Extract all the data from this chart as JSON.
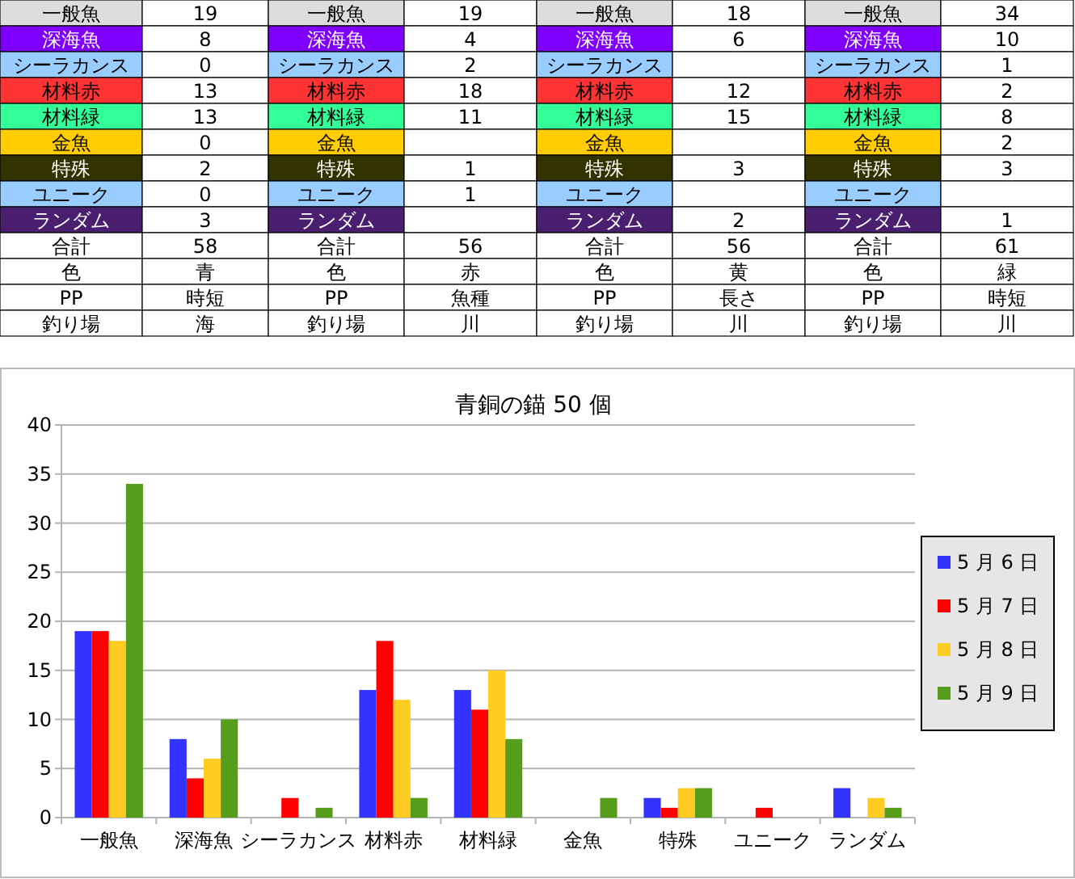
{
  "chart_data": [
    {
      "type": "other",
      "annotations": [
        "一般魚",
        "19",
        "一般魚",
        "19",
        "一般魚",
        "18",
        "一般魚",
        "34",
        "深海魚",
        "8",
        "深海魚",
        "4",
        "深海魚",
        "6",
        "深海魚",
        "10",
        "シーラカンス",
        "0",
        "シーラカンス",
        "2",
        "シーラカンス",
        null,
        "シーラカンス",
        "1",
        "材料赤",
        "13",
        "材料赤",
        "18",
        "材料赤",
        "12",
        "材料赤",
        "2",
        "材料緑",
        "13",
        "材料緑",
        "11",
        "材料緑",
        "15",
        "材料緑",
        "8",
        "金魚",
        "0",
        "金魚",
        null,
        "金魚",
        null,
        "金魚",
        "2",
        "特殊",
        "2",
        "特殊",
        "1",
        "特殊",
        "3",
        "特殊",
        "3",
        "ユニーク",
        "0",
        "ユニーク",
        "1",
        "ユニーク",
        null,
        "ユニーク",
        null,
        "ランダム",
        "3",
        "ランダム",
        null,
        "ランダム",
        "2",
        "ランダム",
        "1",
        "合計",
        "58",
        "合計",
        "56",
        "合計",
        "56",
        "合計",
        "61",
        "色",
        "青",
        "色",
        "赤",
        "色",
        "黄",
        "色",
        "緑",
        "PP",
        "時短",
        "PP",
        "魚種",
        "PP",
        "長さ",
        "PP",
        "時短",
        "釣り場",
        "海",
        "釣り場",
        "川",
        "釣り場",
        "川",
        "釣り場",
        "川"
      ],
      "colors": [
        "#dddddd",
        "#ffffff",
        "#dddddd",
        "#ffffff",
        "#dddddd",
        "#ffffff",
        "#dddddd",
        "#ffffff",
        "#7f00ff",
        "#ffffff",
        "#7f00ff",
        "#ffffff",
        "#7f00ff",
        "#ffffff",
        "#7f00ff",
        "#ffffff",
        "#99ccff",
        "#ffffff",
        "#99ccff",
        "#ffffff",
        "#99ccff",
        "#ffffff",
        "#99ccff",
        "#ffffff",
        "#ff3333",
        "#ffffff",
        "#ff3333",
        "#ffffff",
        "#ff3333",
        "#ffffff",
        "#ff3333",
        "#ffffff",
        "#33ff99",
        "#ffffff",
        "#33ff99",
        "#ffffff",
        "#33ff99",
        "#ffffff",
        "#33ff99",
        "#ffffff",
        "#ffcc00",
        "#ffffff",
        "#ffcc00",
        "#ffffff",
        "#ffcc00",
        "#ffffff",
        "#ffcc00",
        "#ffffff",
        "#333300",
        "#ffffff",
        "#333300",
        "#ffffff",
        "#333300",
        "#ffffff",
        "#333300",
        "#ffffff",
        "#99ccff",
        "#ffffff",
        "#99ccff",
        "#ffffff",
        "#99ccff",
        "#ffffff",
        "#99ccff",
        "#ffffff",
        "#4b1f6f",
        "#ffffff",
        "#4b1f6f",
        "#ffffff",
        "#4b1f6f",
        "#ffffff",
        "#4b1f6f",
        "#ffffff",
        "#ffffff",
        "#ffffff",
        "#ffffff",
        "#ffffff",
        "#ffffff",
        "#ffffff",
        "#ffffff",
        "#ffffff",
        "#ffffff",
        "#ffffff",
        "#ffffff",
        "#ffffff",
        "#ffffff",
        "#ffffff",
        "#ffffff",
        "#ffffff",
        "#ffffff",
        "#ffffff",
        "#ffffff",
        "#ffffff",
        "#ffffff",
        "#ffffff",
        "#ffffff",
        "#ffffff",
        "#ffffff",
        "#ffffff",
        "#ffffff",
        "#ffffff",
        "#ffffff",
        "#ffffff",
        "#ffffff",
        "#ffffff"
      ]
    },
    {
      "type": "bar",
      "title": "青銅の錨 50 個",
      "categories": [
        "一般魚",
        "深海魚",
        "シーラカンス",
        "材料赤",
        "材料緑",
        "金魚",
        "特殊",
        "ユニーク",
        "ランダム"
      ],
      "series": [
        {
          "name": "5 月 6 日",
          "color": "#3333ff",
          "values": [
            19,
            8,
            0,
            13,
            13,
            0,
            2,
            0,
            3
          ]
        },
        {
          "name": "5 月 7 日",
          "color": "#ff0000",
          "values": [
            19,
            4,
            2,
            18,
            11,
            null,
            1,
            1,
            null
          ]
        },
        {
          "name": "5 月 8 日",
          "color": "#ffcc22",
          "values": [
            18,
            6,
            null,
            12,
            15,
            null,
            3,
            null,
            2
          ]
        },
        {
          "name": "5 月 9 日",
          "color": "#579d1c",
          "values": [
            34,
            10,
            1,
            2,
            8,
            2,
            3,
            null,
            1
          ]
        }
      ],
      "ylim": [
        0,
        40
      ],
      "yticks": [
        0,
        5,
        10,
        15,
        20,
        25,
        30,
        35,
        40
      ],
      "grid": "y",
      "legend": "right"
    }
  ]
}
